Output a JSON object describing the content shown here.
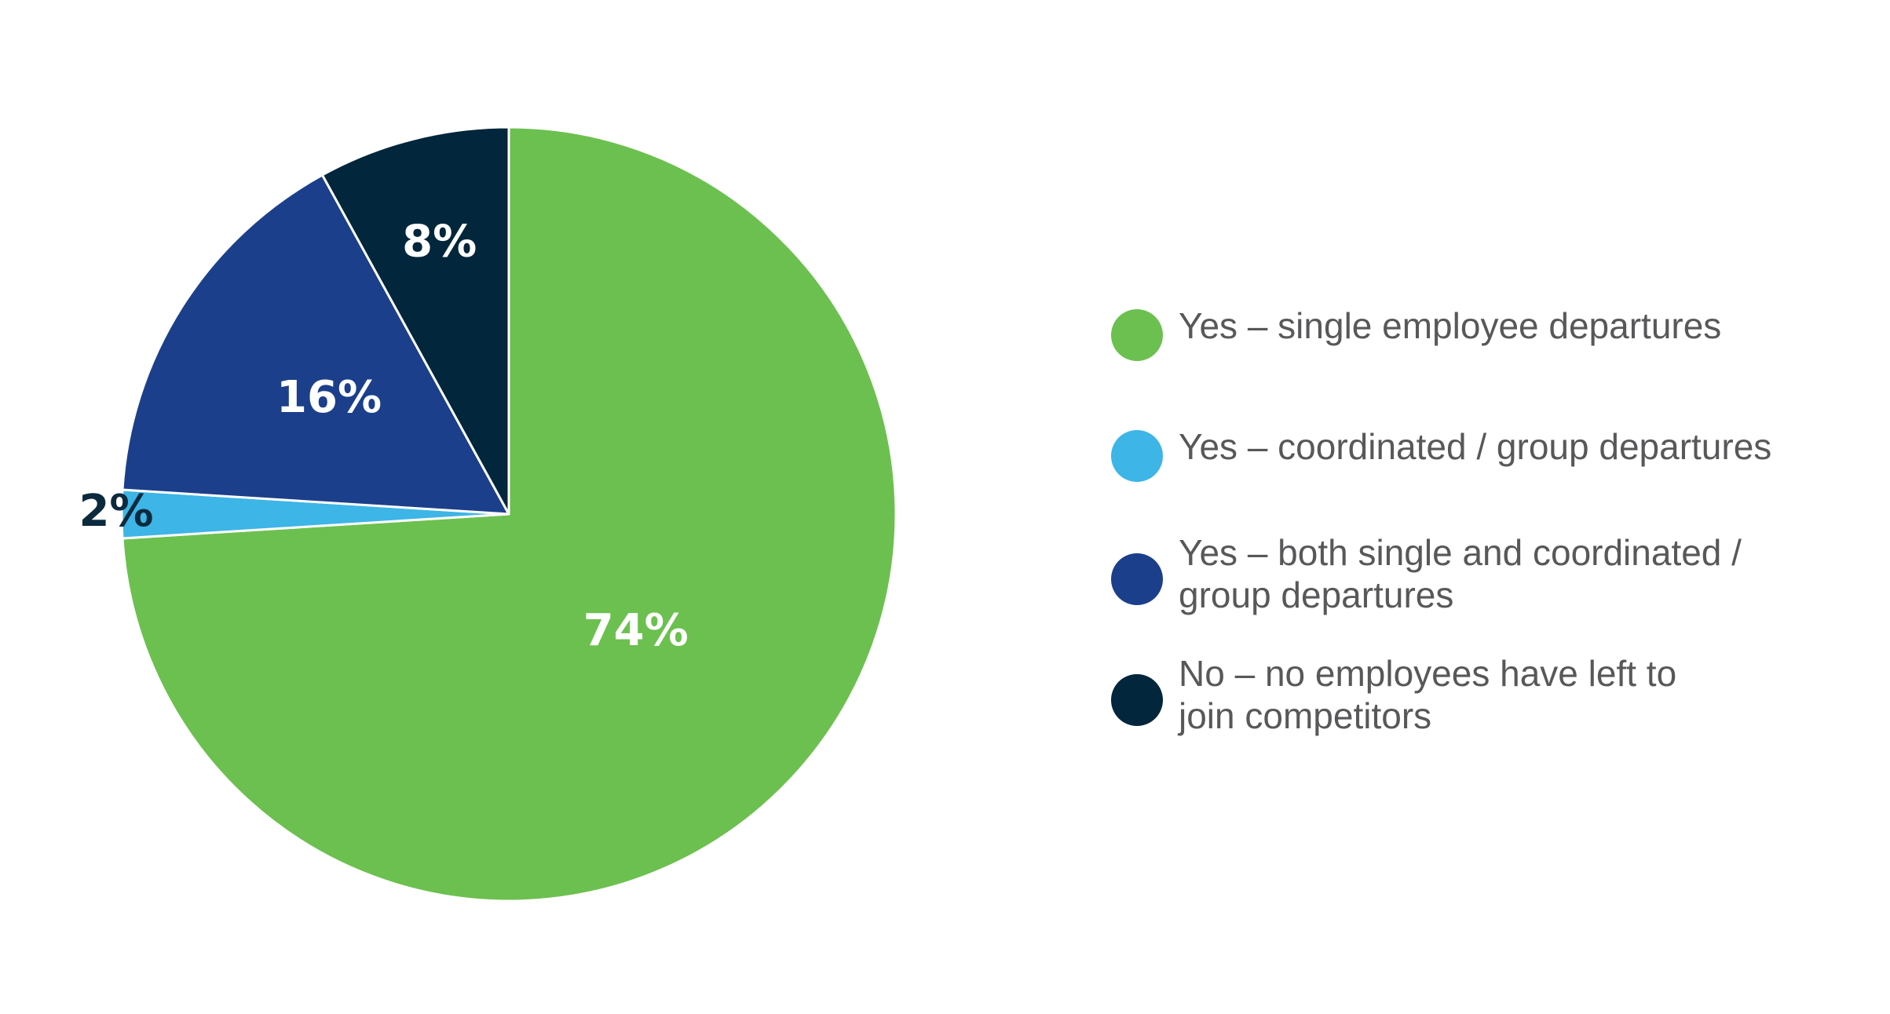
{
  "chart_data": {
    "type": "pie",
    "slices": [
      {
        "label": "Yes – single employee departures",
        "value": 74,
        "display": "74%",
        "color": "#6cc04f",
        "label_color": "#ffffff"
      },
      {
        "label": "Yes – coordinated / group departures",
        "value": 2,
        "display": "2%",
        "color": "#3db5e6",
        "label_color": "#0c2a3d"
      },
      {
        "label": "Yes – both single and coordinated / group departures",
        "value": 16,
        "display": "16%",
        "color": "#1b3f8a",
        "label_color": "#ffffff"
      },
      {
        "label": "No – no employees have left to join competitors",
        "value": 8,
        "display": "8%",
        "color": "#02263b",
        "label_color": "#ffffff"
      }
    ],
    "start_angle": "12 o'clock",
    "direction": "clockwise",
    "legend_position": "right"
  },
  "legend": {
    "items": [
      {
        "text": "Yes – single employee departures",
        "color": "#6cc04f"
      },
      {
        "text": "Yes – coordinated / group departures",
        "color": "#3db5e6"
      },
      {
        "text": "Yes – both single and coordinated /\ngroup departures",
        "color": "#1b3f8a"
      },
      {
        "text": "No – no employees have left to\njoin competitors",
        "color": "#02263b"
      }
    ]
  }
}
